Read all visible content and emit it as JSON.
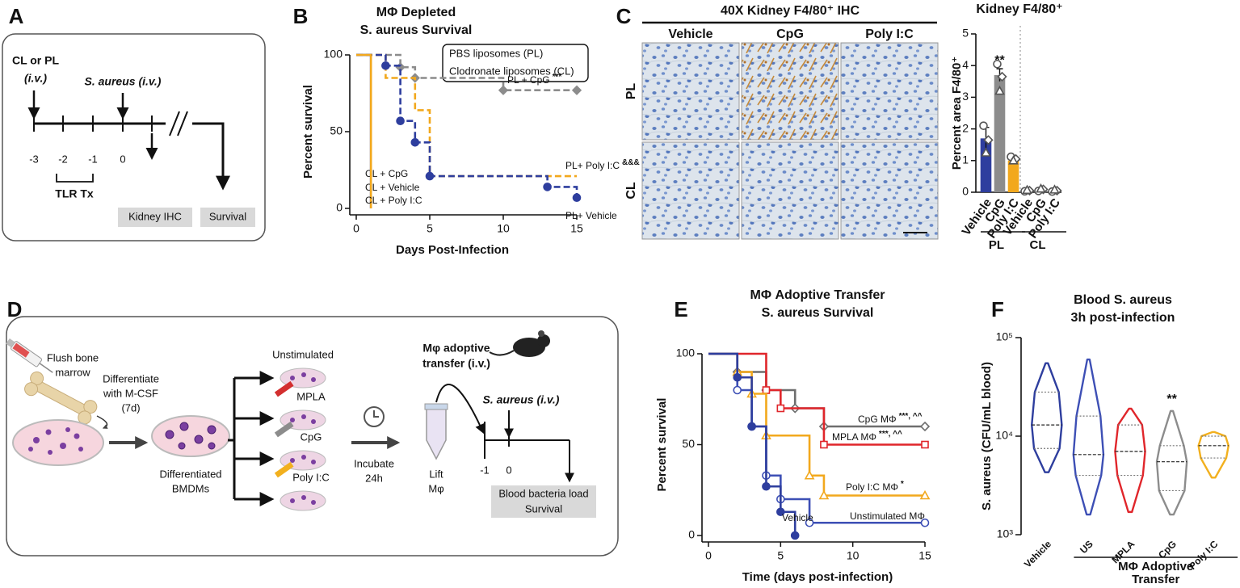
{
  "panel_labels": [
    "A",
    "B",
    "C",
    "D",
    "E",
    "F"
  ],
  "panel_a": {
    "injection": [
      "CL or PL",
      "(i.v.)"
    ],
    "infection": "S. aureus (i.v.)",
    "days": [
      "-3",
      "-2",
      "-1",
      "0"
    ],
    "treatment": "TLR Tx",
    "readouts": [
      "Kidney IHC",
      "Survival"
    ]
  },
  "panel_c_ihc": {
    "title": "40X Kidney F4/80⁺ IHC",
    "columns": [
      "Vehicle",
      "CpG",
      "Poly I:C"
    ],
    "rows": [
      "PL",
      "CL"
    ]
  },
  "panel_d": {
    "flush": [
      "Flush bone",
      "marrow"
    ],
    "differentiate": [
      "Differentiate",
      "with M-CSF",
      "(7d)"
    ],
    "bmdm": [
      "Differentiated",
      "BMDMs"
    ],
    "stimuli": [
      "Unstimulated",
      "MPLA",
      "CpG",
      "Poly I:C"
    ],
    "incubate": [
      "Incubate",
      "24h"
    ],
    "lift": [
      "Lift",
      "Mφ"
    ],
    "transfer": [
      "Mφ adoptive",
      "transfer (i.v.)"
    ],
    "infection": "S. aureus (i.v.)",
    "days": [
      "-1",
      "0"
    ],
    "readouts": [
      "Blood bacteria load",
      "Survival"
    ]
  },
  "chart_data": [
    {
      "type": "line",
      "step": true,
      "title": [
        "MΦ Depleted",
        "S. aureus Survival"
      ],
      "xlabel": "Days Post-Infection",
      "ylabel": "Percent survival",
      "xlim": [
        0,
        15
      ],
      "ylim": [
        0,
        100
      ],
      "xticks": [
        0,
        5,
        10,
        15
      ],
      "yticks": [
        0,
        50,
        100
      ],
      "legend_box": [
        "PBS liposomes (PL)",
        "Clodronate liposomes (CL)"
      ],
      "series": [
        {
          "name": "PL + CpG",
          "significance": "***",
          "color": "#8c8c8c",
          "dashed": true,
          "marker": "diamond",
          "x": [
            0,
            3,
            4,
            10,
            15
          ],
          "values": [
            100,
            92,
            85,
            77,
            77
          ]
        },
        {
          "name": "PL+ Poly I:C",
          "significance": "&&&",
          "color": "#f2a81d",
          "dashed": true,
          "x": [
            0,
            2,
            4,
            5,
            15
          ],
          "values": [
            100,
            85,
            64,
            21,
            21
          ]
        },
        {
          "name": "PL+ Vehicle",
          "color": "#2e3e9e",
          "dashed": true,
          "marker": "circle",
          "x": [
            0,
            2,
            3,
            4,
            5,
            13,
            15
          ],
          "values": [
            100,
            93,
            57,
            43,
            21,
            14,
            7
          ]
        },
        {
          "name": "CL + CpG",
          "color": "#8c8c8c",
          "x": [
            0,
            1
          ],
          "values": [
            100,
            0
          ]
        },
        {
          "name": "CL + Vehicle",
          "color": "#2e3e9e",
          "x": [
            0,
            1
          ],
          "values": [
            100,
            0
          ]
        },
        {
          "name": "CL + Poly I:C",
          "color": "#f2a81d",
          "x": [
            0,
            1
          ],
          "values": [
            100,
            0
          ]
        }
      ]
    },
    {
      "type": "bar",
      "title": "Kidney F4/80⁺",
      "ylabel": "Percent area F4/80⁺",
      "categories": [
        "Vehicle",
        "CpG",
        "Poly I:C",
        "Vehicle",
        "CpG",
        "Poly I:C"
      ],
      "groups": [
        "PL",
        "CL"
      ],
      "values": [
        1.7,
        3.7,
        1.0,
        0.05,
        0.08,
        0.05
      ],
      "errors": [
        0.35,
        0.2,
        0.06,
        0.02,
        0.03,
        0.02
      ],
      "points": [
        [
          2.1,
          1.65,
          1.25
        ],
        [
          4.05,
          3.65,
          3.2
        ],
        [
          1.12,
          1.05,
          1.0
        ],
        [
          0.03,
          0.05,
          0.07
        ],
        [
          0.04,
          0.09,
          0.11
        ],
        [
          0.02,
          0.05,
          0.08
        ]
      ],
      "colors": [
        "#2e3e9e",
        "#8c8c8c",
        "#f2a81d",
        "#2e3e9e",
        "#8c8c8c",
        "#f2a81d"
      ],
      "significance": [
        null,
        "**",
        null,
        null,
        null,
        null
      ],
      "ylim": [
        0,
        5
      ],
      "yticks": [
        0,
        1,
        2,
        3,
        4,
        5
      ]
    },
    {
      "type": "line",
      "step": true,
      "title": [
        "MΦ Adoptive Transfer",
        "S. aureus Survival"
      ],
      "xlabel": "Time (days post-infection)",
      "ylabel": "Percent survival",
      "xlim": [
        0,
        15
      ],
      "ylim": [
        0,
        100
      ],
      "xticks": [
        0,
        5,
        10,
        15
      ],
      "yticks": [
        0,
        50,
        100
      ],
      "series": [
        {
          "name": "CpG MΦ",
          "significance": "***, ^^",
          "color": "#6e6e6e",
          "marker": "diamond",
          "open": true,
          "x": [
            0,
            2,
            4,
            6,
            8,
            15
          ],
          "values": [
            100,
            90,
            80,
            70,
            60,
            60
          ]
        },
        {
          "name": "MPLA MΦ",
          "significance": "***, ^^",
          "color": "#e0262b",
          "marker": "square",
          "open": true,
          "x": [
            0,
            4,
            5,
            8,
            15
          ],
          "values": [
            100,
            80,
            70,
            50,
            50
          ]
        },
        {
          "name": "Poly I:C MΦ",
          "significance": "*",
          "color": "#f2a81d",
          "marker": "triangle",
          "open": true,
          "x": [
            0,
            2,
            3,
            4,
            7,
            8,
            15
          ],
          "values": [
            100,
            90,
            78,
            55,
            33,
            22,
            22
          ]
        },
        {
          "name": "Unstimulated MΦ",
          "color": "#3d4fb5",
          "marker": "circle",
          "open": true,
          "x": [
            0,
            2,
            3,
            4,
            5,
            7,
            15
          ],
          "values": [
            100,
            80,
            60,
            33,
            20,
            7,
            7
          ]
        },
        {
          "name": "Vehicle",
          "color": "#2e3e9e",
          "marker": "circle",
          "x": [
            0,
            2,
            3,
            4,
            5,
            6
          ],
          "values": [
            100,
            87,
            60,
            27,
            13,
            0
          ]
        }
      ]
    },
    {
      "type": "violin",
      "title": [
        "Blood S. aureus",
        "3h post-infection"
      ],
      "ylabel": "S. aureus (CFU/mL blood)",
      "categories": [
        "Vehicle",
        "US",
        "MPLA",
        "CpG",
        "Poly I:C"
      ],
      "group_label": [
        "MΦ Adoptive",
        "Transfer"
      ],
      "min": [
        4300,
        1600,
        1700,
        1600,
        3800
      ],
      "q1": [
        7500,
        4000,
        4000,
        2800,
        6000
      ],
      "median": [
        13000,
        6500,
        7000,
        5500,
        8000
      ],
      "q3": [
        28000,
        16000,
        13000,
        8000,
        10000
      ],
      "max": [
        55000,
        60000,
        19000,
        18000,
        11000
      ],
      "colors": [
        "#2e3e9e",
        "#3d4fb5",
        "#e0262b",
        "#8c8c8c",
        "#f2b01e"
      ],
      "significance": [
        null,
        null,
        null,
        "**",
        null
      ],
      "log": true,
      "ylim": [
        1000,
        100000
      ],
      "yticks": [
        {
          "value": 1000,
          "label": "10³"
        },
        {
          "value": 10000,
          "label": "10⁴"
        },
        {
          "value": 100000,
          "label": "10⁵"
        }
      ]
    }
  ]
}
